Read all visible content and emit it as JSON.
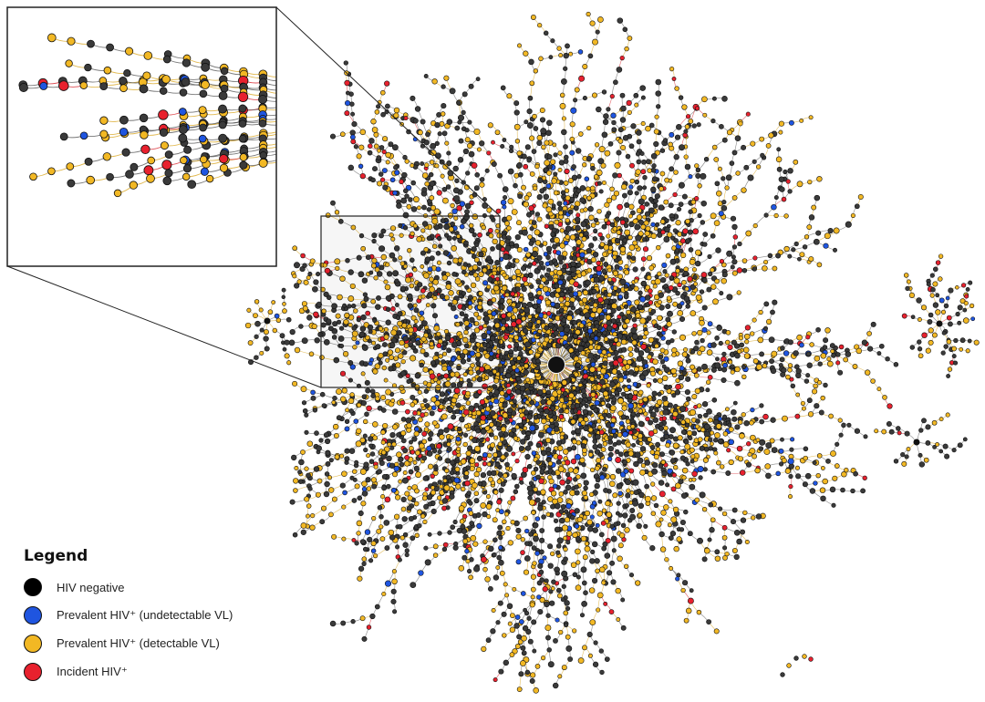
{
  "legend": {
    "title": "Legend",
    "items": [
      {
        "label": "HIV negative",
        "color": "#000000",
        "status": "hiv-negative"
      },
      {
        "label": "Prevalent HIV⁺ (undetectable VL)",
        "color": "#1f55e0",
        "status": "prevalent-undetectable"
      },
      {
        "label": "Prevalent HIV⁺ (detectable VL)",
        "color": "#f2b824",
        "status": "prevalent-detectable"
      },
      {
        "label": "Incident HIV⁺",
        "color": "#e8212e",
        "status": "incident"
      }
    ]
  },
  "node_colors": {
    "negative": "#3a3a3a",
    "undetectable": "#1f55e0",
    "detectable": "#f2b824",
    "incident": "#e8212e",
    "stroke": "#111111"
  },
  "edge_colors": {
    "default": "#555555",
    "detectable": "#d9a622",
    "incident": "#d7262e"
  }
}
